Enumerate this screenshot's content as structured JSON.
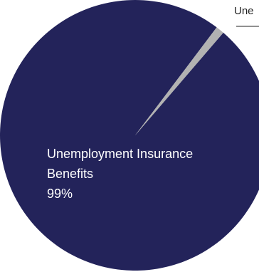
{
  "chart_data": {
    "type": "pie",
    "title": "",
    "slices": [
      {
        "label": "Unemployment Insurance Benefits",
        "label_lines": [
          "Unemployment Insurance",
          "Benefits"
        ],
        "value": 99,
        "value_label": "99%",
        "color": "#23235a"
      },
      {
        "label": "Une",
        "value": 1,
        "value_label": "",
        "color": "#b2b2b2"
      }
    ],
    "legend": "none"
  }
}
